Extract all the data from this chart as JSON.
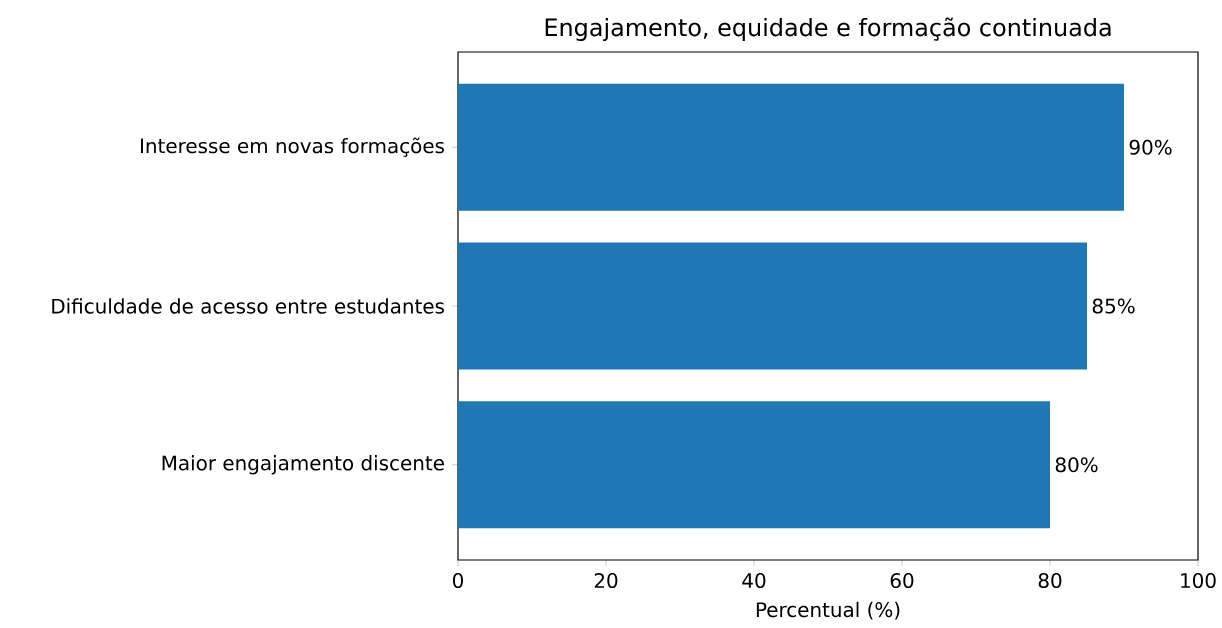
{
  "chart_data": {
    "type": "bar",
    "orientation": "horizontal",
    "title": "Engajamento, equidade e formação continuada",
    "xlabel": "Percentual (%)",
    "categories": [
      "Interesse em novas formações",
      "Dificuldade de acesso entre estudantes",
      "Maior engajamento discente"
    ],
    "values": [
      90,
      85,
      80
    ],
    "value_labels": [
      "90%",
      "85%",
      "80%"
    ],
    "color": "#1f77b4",
    "xlim": [
      0,
      100
    ],
    "xticks": [
      0,
      20,
      40,
      60,
      80,
      100
    ]
  }
}
